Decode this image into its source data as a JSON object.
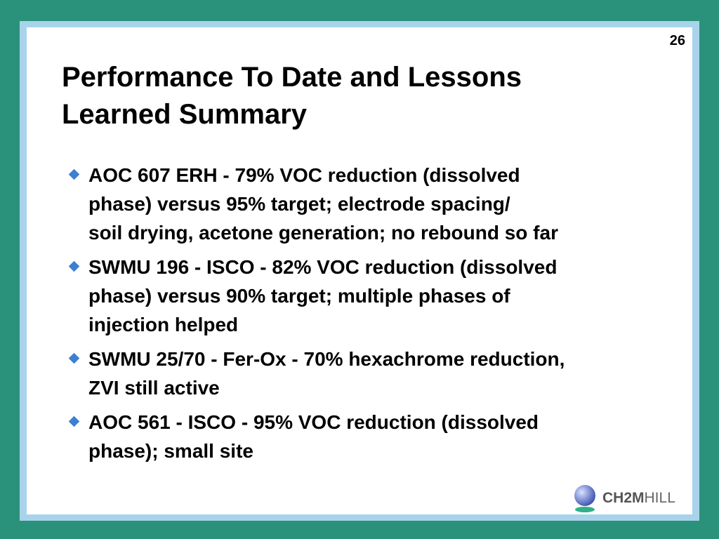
{
  "page_number": "26",
  "title": [
    "Performance To Date and Lessons",
    "Learned Summary"
  ],
  "bullets": [
    {
      "lines": [
        "AOC 607 ERH - 79% VOC reduction (dissolved",
        "phase) versus 95% target; electrode spacing/",
        "soil drying, acetone generation; no rebound so far"
      ]
    },
    {
      "lines": [
        "SWMU 196 - ISCO - 82% VOC reduction (dissolved",
        "phase) versus 90% target; multiple phases of",
        "injection helped"
      ]
    },
    {
      "lines": [
        "SWMU 25/70 - Fer-Ox - 70% hexachrome reduction,",
        "ZVI still active"
      ]
    },
    {
      "lines": [
        "AOC 561 - ISCO - 95% VOC reduction (dissolved",
        "phase); small site"
      ]
    }
  ],
  "logo": {
    "parts": [
      "CH2M",
      "HILL"
    ]
  }
}
